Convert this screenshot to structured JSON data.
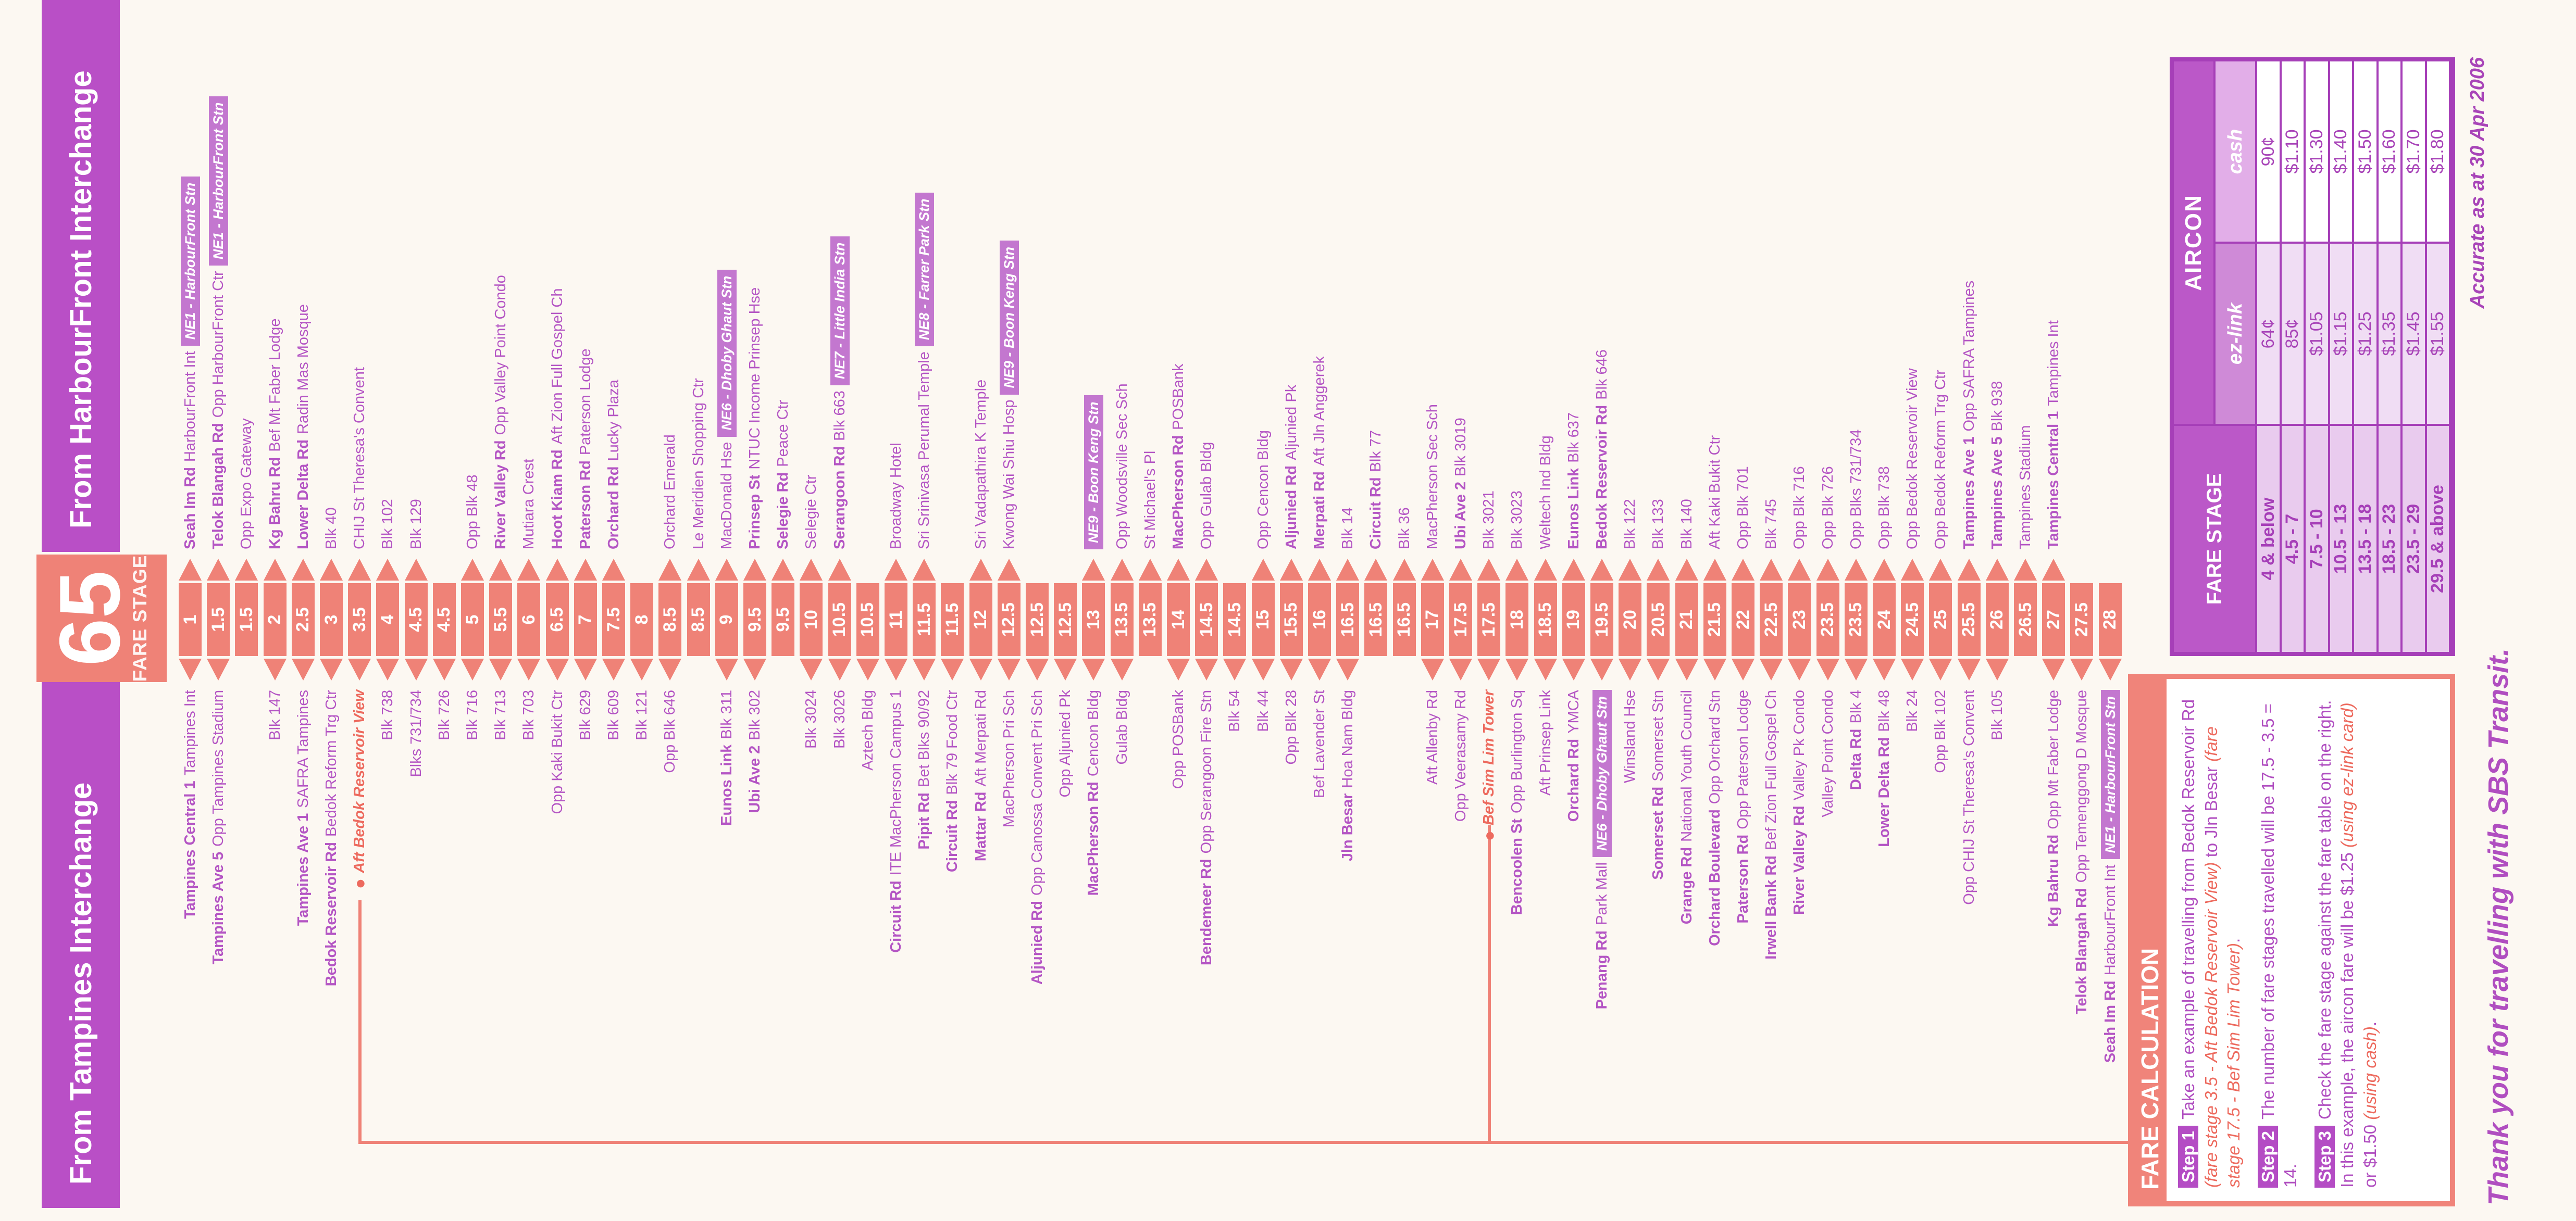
{
  "service": {
    "number": "65",
    "fare_stage_label": "FARE STAGE"
  },
  "headers": {
    "from_tampines": "From Tampines Interchange",
    "from_harbourfront": "From HarbourFront Interchange"
  },
  "footer": {
    "thank_you": "Thank you for travelling with SBS Transit.",
    "accuracy_note": "Accurate as at 30 Apr 2006"
  },
  "colors": {
    "purple_bar": "#b94fc6",
    "stop_text": "#b455c4",
    "mrt_badge": "#c377cf",
    "stage_salmon": "#ef8277",
    "special_stop": "#ed6a5e",
    "table_border": "#a63fb8"
  },
  "stages": [
    {
      "n": "1",
      "r": {
        "road": "Seah Im Rd",
        "name": "HarbourFront Int",
        "mrt": "NE1 - HarbourFront Stn"
      },
      "l": {
        "road": "Tampines Central 1",
        "name": "Tampines Int"
      }
    },
    {
      "n": "1.5",
      "r": {
        "road": "Telok Blangah Rd",
        "name": "Opp HarbourFront Ctr",
        "mrt": "NE1 - HarbourFront Stn"
      },
      "l": {
        "road": "Tampines Ave 5",
        "name": "Opp Tampines Stadium"
      }
    },
    {
      "n": "1.5",
      "r": {
        "name": "Opp Expo Gateway"
      }
    },
    {
      "n": "2",
      "r": {
        "road": "Kg Bahru Rd",
        "name": "Bef Mt Faber Lodge"
      },
      "l": {
        "name": "Blk 147"
      }
    },
    {
      "n": "2.5",
      "r": {
        "road": "Lower Delta Rd",
        "name": "Radin Mas Mosque"
      },
      "l": {
        "road": "Tampines Ave 1",
        "name": "SAFRA Tampines"
      }
    },
    {
      "n": "3",
      "r": {
        "name": "Blk 40"
      },
      "l": {
        "road": "Bedok Reservoir Rd",
        "name": "Bedok Reform Trg Ctr"
      }
    },
    {
      "n": "3.5",
      "r": {
        "name": "CHIJ St Theresa's Convent"
      },
      "l": {
        "name": "Aft Bedok Reservoir View",
        "special": true
      }
    },
    {
      "n": "4",
      "r": {
        "name": "Blk 102"
      },
      "l": {
        "name": "Blk 738"
      }
    },
    {
      "n": "4.5",
      "r": {
        "name": "Blk 129"
      },
      "l": {
        "name": "Blks 731/734"
      }
    },
    {
      "n": "4.5",
      "l": {
        "name": "Blk 726"
      }
    },
    {
      "n": "5",
      "r": {
        "name": "Opp Blk 48"
      },
      "l": {
        "name": "Blk 716"
      }
    },
    {
      "n": "5.5",
      "r": {
        "road": "River Valley Rd",
        "name": "Opp Valley Point Condo"
      },
      "l": {
        "name": "Blk 713"
      }
    },
    {
      "n": "6",
      "r": {
        "name": "Mutiara Crest"
      },
      "l": {
        "name": "Blk 703"
      }
    },
    {
      "n": "6.5",
      "r": {
        "road": "Hoot Kiam Rd",
        "name": "Aft Zion Full Gospel Ch"
      },
      "l": {
        "name": "Opp Kaki Bukit Ctr"
      }
    },
    {
      "n": "7",
      "r": {
        "road": "Paterson Rd",
        "name": "Paterson Lodge"
      },
      "l": {
        "name": "Blk 629"
      }
    },
    {
      "n": "7.5",
      "r": {
        "road": "Orchard Rd",
        "name": "Lucky Plaza"
      },
      "l": {
        "name": "Blk 609"
      }
    },
    {
      "n": "8",
      "l": {
        "name": "Blk 121"
      }
    },
    {
      "n": "8.5",
      "r": {
        "name": "Orchard Emerald"
      },
      "l": {
        "name": "Opp Blk 646"
      }
    },
    {
      "n": "8.5",
      "r": {
        "name": "Le Meridien Shopping Ctr"
      }
    },
    {
      "n": "9",
      "r": {
        "name": "MacDonald Hse",
        "mrt": "NE6 - Dhoby Ghaut Stn"
      },
      "l": {
        "road": "Eunos Link",
        "name": "Blk 311"
      }
    },
    {
      "n": "9.5",
      "r": {
        "road": "Prinsep St",
        "name": "NTUC Income Prinsep Hse"
      },
      "l": {
        "road": "Ubi Ave 2",
        "name": "Blk 302"
      }
    },
    {
      "n": "9.5",
      "r": {
        "road": "Selegie Rd",
        "name": "Peace Ctr"
      }
    },
    {
      "n": "10",
      "r": {
        "name": "Selegie Ctr"
      },
      "l": {
        "name": "Blk 3024"
      }
    },
    {
      "n": "10.5",
      "r": {
        "road": "Serangoon Rd",
        "name": "Blk 663",
        "mrt": "NE7 - Little India Stn"
      },
      "l": {
        "name": "Blk 3026"
      }
    },
    {
      "n": "10.5",
      "l": {
        "name": "Aztech Bldg"
      }
    },
    {
      "n": "11",
      "r": {
        "name": "Broadway Hotel"
      },
      "l": {
        "road": "Circuit Rd",
        "name": "ITE MacPherson Campus 1"
      }
    },
    {
      "n": "11.5",
      "r": {
        "name": "Sri Srinivasa Perumal Temple",
        "mrt": "NE8 - Farrer Park Stn"
      },
      "l": {
        "road": "Pipit Rd",
        "name": "Bet Blks 90/92"
      }
    },
    {
      "n": "11.5",
      "l": {
        "road": "Circuit Rd",
        "name": "Blk 79 Food Ctr"
      }
    },
    {
      "n": "12",
      "r": {
        "name": "Sri Vadapathira K Temple"
      },
      "l": {
        "road": "Mattar Rd",
        "name": "Aft Merpati Rd"
      }
    },
    {
      "n": "12.5",
      "r": {
        "name": "Kwong Wai Shiu Hosp",
        "mrt": "NE9 - Boon Keng Stn"
      },
      "l": {
        "name": "MacPherson Pri Sch"
      }
    },
    {
      "n": "12.5",
      "l": {
        "road": "Aljunied Rd",
        "name": "Opp Canossa Convent Pri Sch"
      }
    },
    {
      "n": "12.5",
      "l": {
        "name": "Opp Aljunied Pk"
      }
    },
    {
      "n": "13",
      "r": {
        "mrt": "NE9 - Boon Keng Stn"
      },
      "l": {
        "road": "MacPherson Rd",
        "name": "Cencon Bldg"
      }
    },
    {
      "n": "13.5",
      "r": {
        "name": "Opp Woodsville Sec Sch"
      },
      "l": {
        "name": "Gulab Bldg"
      }
    },
    {
      "n": "13.5",
      "r": {
        "name": "St Michael's Pl"
      }
    },
    {
      "n": "14",
      "r": {
        "road": "MacPherson Rd",
        "name": "POSBank"
      },
      "l": {
        "name": "Opp POSBank"
      }
    },
    {
      "n": "14.5",
      "r": {
        "name": "Opp Gulab Bldg"
      },
      "l": {
        "road": "Bendemeer Rd",
        "name": "Opp Serangoon Fire Stn"
      }
    },
    {
      "n": "14.5",
      "l": {
        "name": "Blk 54"
      }
    },
    {
      "n": "15",
      "r": {
        "name": "Opp Cencon Bldg"
      },
      "l": {
        "name": "Blk 44"
      }
    },
    {
      "n": "15.5",
      "r": {
        "road": "Aljunied Rd",
        "name": "Aljunied Pk"
      },
      "l": {
        "name": "Opp Blk 28"
      }
    },
    {
      "n": "16",
      "r": {
        "road": "Merpati Rd",
        "name": "Aft Jln Anggerek"
      },
      "l": {
        "name": "Bef Lavender St"
      }
    },
    {
      "n": "16.5",
      "r": {
        "name": "Blk 14"
      },
      "l": {
        "road": "Jln Besar",
        "name": "Hoa Nam Bldg"
      }
    },
    {
      "n": "16.5",
      "r": {
        "road": "Circuit Rd",
        "name": "Blk 77"
      }
    },
    {
      "n": "16.5",
      "r": {
        "name": "Blk 36"
      }
    },
    {
      "n": "17",
      "r": {
        "name": "MacPherson Sec Sch"
      },
      "l": {
        "name": "Aft Allenby Rd"
      }
    },
    {
      "n": "17.5",
      "r": {
        "road": "Ubi Ave 2",
        "name": "Blk 3019"
      },
      "l": {
        "name": "Opp Veerasamy Rd"
      }
    },
    {
      "n": "17.5",
      "r": {
        "name": "Blk 3021"
      },
      "l": {
        "name": "Bef Sim Lim Tower",
        "special": true
      }
    },
    {
      "n": "18",
      "r": {
        "name": "Blk 3023"
      },
      "l": {
        "road": "Bencoolen St",
        "name": "Opp Burlington Sq"
      }
    },
    {
      "n": "18.5",
      "r": {
        "name": "Weltech Ind Bldg"
      },
      "l": {
        "name": "Aft Prinsep Link"
      }
    },
    {
      "n": "19",
      "r": {
        "road": "Eunos Link",
        "name": "Blk 637"
      },
      "l": {
        "road": "Orchard Rd",
        "name": "YMCA"
      }
    },
    {
      "n": "19.5",
      "r": {
        "road": "Bedok Reservoir Rd",
        "name": "Blk 646"
      },
      "l": {
        "road": "Penang Rd",
        "name": "Park Mall",
        "mrt": "NE6 - Dhoby Ghaut Stn"
      }
    },
    {
      "n": "20",
      "r": {
        "name": "Blk 122"
      },
      "l": {
        "name": "Winsland Hse"
      }
    },
    {
      "n": "20.5",
      "r": {
        "name": "Blk 133"
      },
      "l": {
        "road": "Somerset Rd",
        "name": "Somerset Stn"
      }
    },
    {
      "n": "21",
      "r": {
        "name": "Blk 140"
      },
      "l": {
        "road": "Grange Rd",
        "name": "National Youth Council"
      }
    },
    {
      "n": "21.5",
      "r": {
        "name": "Aft Kaki Bukit Ctr"
      },
      "l": {
        "road": "Orchard Boulevard",
        "name": "Opp Orchard Stn"
      }
    },
    {
      "n": "22",
      "r": {
        "name": "Opp Blk 701"
      },
      "l": {
        "road": "Paterson Rd",
        "name": "Opp Paterson Lodge"
      }
    },
    {
      "n": "22.5",
      "r": {
        "name": "Blk 745"
      },
      "l": {
        "road": "Irwell Bank Rd",
        "name": "Bef Zion Full Gospel Ch"
      }
    },
    {
      "n": "23",
      "r": {
        "name": "Opp Blk 716"
      },
      "l": {
        "road": "River Valley Rd",
        "name": "Valley Pk Condo"
      }
    },
    {
      "n": "23.5",
      "r": {
        "name": "Opp Blk 726"
      },
      "l": {
        "name": "Valley Point Condo"
      }
    },
    {
      "n": "23.5",
      "r": {
        "name": "Opp Blks 731/734"
      },
      "l": {
        "road": "Delta Rd",
        "name": "Blk 4"
      }
    },
    {
      "n": "24",
      "r": {
        "name": "Opp Blk 738"
      },
      "l": {
        "road": "Lower Delta Rd",
        "name": "Blk 48"
      }
    },
    {
      "n": "24.5",
      "r": {
        "name": "Opp Bedok Reservoir View"
      },
      "l": {
        "name": "Blk 24"
      }
    },
    {
      "n": "25",
      "r": {
        "name": "Opp Bedok Reform Trg Ctr"
      },
      "l": {
        "name": "Opp Blk 102"
      }
    },
    {
      "n": "25.5",
      "r": {
        "road": "Tampines Ave 1",
        "name": "Opp SAFRA Tampines"
      },
      "l": {
        "name": "Opp CHIJ St Theresa's Convent"
      }
    },
    {
      "n": "26",
      "r": {
        "road": "Tampines Ave 5",
        "name": "Blk 938"
      },
      "l": {
        "name": "Blk 105"
      }
    },
    {
      "n": "26.5",
      "r": {
        "name": "Tampines Stadium"
      }
    },
    {
      "n": "27",
      "r": {
        "road": "Tampines Central 1",
        "name": "Tampines Int"
      },
      "l": {
        "road": "Kg Bahru Rd",
        "name": "Opp Mt Faber Lodge"
      }
    },
    {
      "n": "27.5",
      "l": {
        "road": "Telok Blangah Rd",
        "name": "Opp Temenggong D Mosque"
      }
    },
    {
      "n": "28",
      "l": {
        "road": "Seah Im Rd",
        "name": "HarbourFront Int",
        "mrt": "NE1 - HarbourFront Stn"
      }
    }
  ],
  "fare_table": {
    "col_header": "FARE STAGE",
    "group_header": "AIRCON",
    "sub_headers": [
      "ez-link",
      "cash"
    ],
    "rows": [
      {
        "range": "4 & below",
        "ezlink": "64¢",
        "cash": "90¢"
      },
      {
        "range": "4.5 - 7",
        "ezlink": "85¢",
        "cash": "$1.10"
      },
      {
        "range": "7.5 - 10",
        "ezlink": "$1.05",
        "cash": "$1.30"
      },
      {
        "range": "10.5 - 13",
        "ezlink": "$1.15",
        "cash": "$1.40"
      },
      {
        "range": "13.5 - 18",
        "ezlink": "$1.25",
        "cash": "$1.50"
      },
      {
        "range": "18.5 - 23",
        "ezlink": "$1.35",
        "cash": "$1.60"
      },
      {
        "range": "23.5 - 29",
        "ezlink": "$1.45",
        "cash": "$1.70"
      },
      {
        "range": "29.5 & above",
        "ezlink": "$1.55",
        "cash": "$1.80"
      }
    ]
  },
  "fare_calc": {
    "title": "FARE CALCULATION",
    "steps": [
      {
        "label": "Step 1",
        "parts": [
          {
            "t": "Take an example of travelling from Bedok Reservoir Rd "
          },
          {
            "t": "(fare stage 3.5 - Aft Bedok Reservoir View)",
            "hl": true
          },
          {
            "t": " to Jln Besar "
          },
          {
            "t": "(fare stage 17.5 - Bef Sim Lim Tower)",
            "hl": true
          },
          {
            "t": "."
          }
        ]
      },
      {
        "label": "Step 2",
        "parts": [
          {
            "t": "The number of fare stages travelled will be 17.5 - 3.5 = 14."
          }
        ]
      },
      {
        "label": "Step 3",
        "parts": [
          {
            "t": "Check the fare stage against the fare table on the right. In this example, the aircon fare will be $1.25 "
          },
          {
            "t": "(using ez-link card)",
            "hl": true
          },
          {
            "t": " or $1.50 "
          },
          {
            "t": "(using cash)",
            "hl": true
          },
          {
            "t": "."
          }
        ]
      }
    ]
  }
}
